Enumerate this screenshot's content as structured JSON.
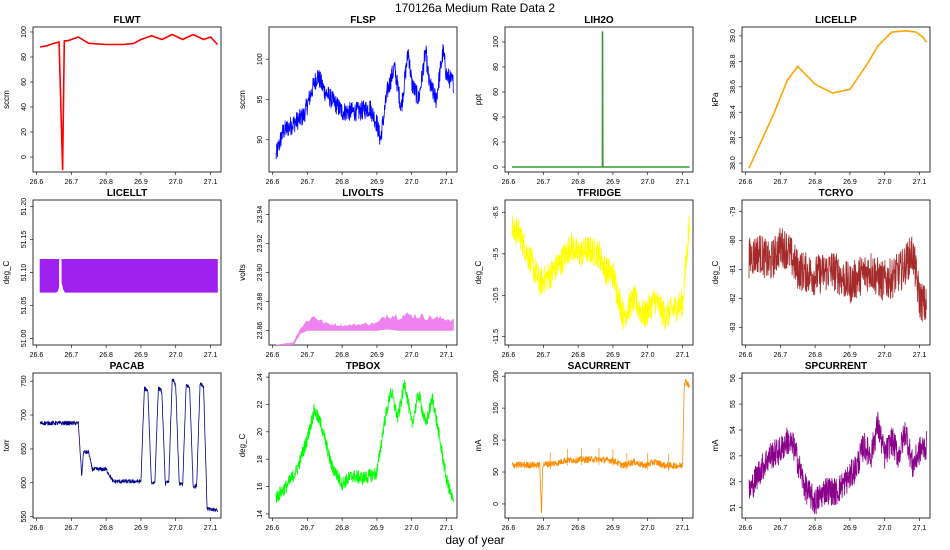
{
  "figure": {
    "title": "170126a   Medium Rate Data 2",
    "xlabel": "day of year",
    "xticks": [
      "26.6",
      "26.7",
      "26.8",
      "26.9",
      "27.0",
      "27.1"
    ]
  },
  "chart_data": [
    {
      "type": "line",
      "title": "FLWT",
      "ylabel": "sccm",
      "color": "#ff0000",
      "xlim": [
        26.59,
        27.13
      ],
      "ylim": [
        -12,
        104
      ],
      "yticks": [
        "0",
        "20",
        "40",
        "60",
        "80",
        "100"
      ],
      "yticks_v": [
        0,
        20,
        40,
        60,
        80,
        100
      ],
      "x": [
        26.61,
        26.63,
        26.65,
        26.665,
        26.675,
        26.68,
        26.69,
        26.72,
        26.75,
        26.8,
        26.85,
        26.88,
        26.9,
        26.93,
        26.96,
        26.99,
        27.02,
        27.05,
        27.08,
        27.1,
        27.12
      ],
      "y": [
        88,
        89,
        91,
        92,
        -10,
        93,
        93,
        96,
        91,
        90,
        90,
        91,
        94,
        97,
        94,
        98,
        94,
        98,
        94,
        96,
        90
      ]
    },
    {
      "type": "line",
      "title": "FLSP",
      "ylabel": "sccm",
      "color": "#0000ff",
      "xlim": [
        26.59,
        27.13
      ],
      "ylim": [
        86,
        104
      ],
      "yticks": [
        "90",
        "95",
        "100"
      ],
      "yticks_v": [
        90,
        95,
        100
      ],
      "x": [
        26.61,
        26.63,
        26.66,
        26.69,
        26.72,
        26.73,
        26.75,
        26.8,
        26.85,
        26.88,
        26.9,
        26.91,
        26.93,
        26.95,
        26.97,
        26.99,
        27.0,
        27.02,
        27.04,
        27.05,
        27.07,
        27.09,
        27.1,
        27.12
      ],
      "y": [
        88,
        91,
        92,
        93,
        97,
        98,
        96,
        93.5,
        93.5,
        94,
        92,
        90,
        96,
        99,
        94,
        101,
        97,
        95,
        101,
        97,
        95,
        101,
        98,
        97
      ],
      "noise": 1.2
    },
    {
      "type": "line",
      "title": "LIH2O",
      "ylabel": "ppt",
      "color": "#339933",
      "xlim": [
        26.59,
        27.13
      ],
      "ylim": [
        -4,
        112
      ],
      "yticks": [
        "0",
        "20",
        "40",
        "60",
        "80",
        "100"
      ],
      "yticks_v": [
        0,
        20,
        40,
        60,
        80,
        100
      ],
      "x": [
        26.61,
        26.87,
        26.87,
        26.871,
        26.872,
        27.12
      ],
      "y": [
        0,
        0,
        108,
        0,
        0,
        0
      ]
    },
    {
      "type": "line",
      "title": "LICELLP",
      "ylabel": "kPa",
      "color": "#ffa500",
      "xlim": [
        26.59,
        27.13
      ],
      "ylim": [
        37.93,
        39.07
      ],
      "yticks": [
        "38.0",
        "38.2",
        "38.4",
        "38.6",
        "38.8",
        "39.0"
      ],
      "yticks_v": [
        38.0,
        38.2,
        38.4,
        38.6,
        38.8,
        39.0
      ],
      "x": [
        26.61,
        26.65,
        26.68,
        26.72,
        26.75,
        26.8,
        26.85,
        26.9,
        26.95,
        26.98,
        27.02,
        27.06,
        27.09,
        27.11,
        27.12
      ],
      "y": [
        37.96,
        38.2,
        38.38,
        38.65,
        38.76,
        38.62,
        38.55,
        38.58,
        38.78,
        38.92,
        39.03,
        39.04,
        39.03,
        38.99,
        38.95
      ]
    },
    {
      "type": "band",
      "title": "LICELLT",
      "ylabel": "deg_C",
      "color": "#a020f0",
      "xlim": [
        26.59,
        27.13
      ],
      "ylim": [
        50.99,
        51.21
      ],
      "yticks": [
        "51.00",
        "51.05",
        "51.10",
        "51.15",
        "51.20"
      ],
      "yticks_v": [
        51.0,
        51.05,
        51.1,
        51.15,
        51.2
      ],
      "x": [
        26.61,
        26.66,
        26.67,
        26.68,
        27.12
      ],
      "low": [
        51.07,
        51.07,
        51.09,
        51.07,
        51.07
      ],
      "high": [
        51.12,
        51.12,
        51.12,
        51.12,
        51.12
      ]
    },
    {
      "type": "band",
      "title": "LIVOLTS",
      "ylabel": "volts",
      "color": "#ee82ee",
      "xlim": [
        26.59,
        27.13
      ],
      "ylim": [
        23.85,
        23.95
      ],
      "yticks": [
        "23.86",
        "23.88",
        "23.90",
        "23.92",
        "23.94"
      ],
      "yticks_v": [
        23.86,
        23.88,
        23.9,
        23.92,
        23.94
      ],
      "x": [
        26.61,
        26.66,
        26.68,
        26.7,
        26.72,
        26.75,
        26.8,
        26.85,
        26.9,
        26.93,
        26.96,
        26.99,
        27.02,
        27.05,
        27.08,
        27.1,
        27.12
      ],
      "low": [
        23.85,
        23.85,
        23.858,
        23.86,
        23.86,
        23.86,
        23.86,
        23.86,
        23.86,
        23.861,
        23.86,
        23.86,
        23.86,
        23.86,
        23.86,
        23.86,
        23.86
      ],
      "high": [
        23.85,
        23.852,
        23.862,
        23.868,
        23.872,
        23.866,
        23.864,
        23.865,
        23.866,
        23.873,
        23.872,
        23.873,
        23.872,
        23.871,
        23.87,
        23.87,
        23.868
      ]
    },
    {
      "type": "line",
      "title": "TFRIDGE",
      "ylabel": "deg_C",
      "color": "#ffff00",
      "xlim": [
        26.59,
        27.13
      ],
      "ylim": [
        -11.7,
        -8.2
      ],
      "yticks": [
        "-11.5",
        "-10.5",
        "-9.5",
        "-8.5"
      ],
      "yticks_v": [
        -11.5,
        -10.5,
        -9.5,
        -8.5
      ],
      "x": [
        26.61,
        26.63,
        26.66,
        26.69,
        26.72,
        26.75,
        26.78,
        26.8,
        26.83,
        26.86,
        26.88,
        26.9,
        26.93,
        26.96,
        26.99,
        27.02,
        27.05,
        27.08,
        27.1,
        27.12
      ],
      "y": [
        -8.9,
        -9.0,
        -9.6,
        -10.2,
        -10.0,
        -9.7,
        -9.3,
        -9.5,
        -9.4,
        -9.5,
        -9.9,
        -10.0,
        -11.0,
        -10.6,
        -11.0,
        -10.6,
        -11.0,
        -10.8,
        -10.7,
        -8.7
      ],
      "noise": 0.35
    },
    {
      "type": "line",
      "title": "TCRYO",
      "ylabel": "deg_C",
      "color": "#a52a2a",
      "xlim": [
        26.59,
        27.13
      ],
      "ylim": [
        -83.6,
        -78.6
      ],
      "yticks": [
        "-83",
        "-82",
        "-81",
        "-80",
        "-79"
      ],
      "yticks_v": [
        -83,
        -82,
        -81,
        -80,
        -79
      ],
      "x": [
        26.61,
        26.64,
        26.67,
        26.7,
        26.72,
        26.75,
        26.8,
        26.85,
        26.9,
        26.93,
        26.96,
        26.99,
        27.02,
        27.05,
        27.08,
        27.1,
        27.12
      ],
      "y": [
        -80.6,
        -80.4,
        -80.8,
        -80.2,
        -80.3,
        -81.0,
        -81.2,
        -81.0,
        -81.5,
        -81.2,
        -81.0,
        -81.4,
        -81.3,
        -81.0,
        -80.4,
        -82.0,
        -82.3
      ],
      "noise": 0.7
    },
    {
      "type": "line",
      "title": "PACAB",
      "ylabel": "torr",
      "color": "#00008b",
      "xlim": [
        26.59,
        27.13
      ],
      "ylim": [
        548,
        762
      ],
      "yticks": [
        "550",
        "600",
        "650",
        "700",
        "750"
      ],
      "yticks_v": [
        550,
        600,
        650,
        700,
        750
      ],
      "x": [
        26.61,
        26.7,
        26.72,
        26.73,
        26.735,
        26.75,
        26.76,
        26.8,
        26.82,
        26.83,
        26.9,
        26.91,
        26.92,
        26.93,
        26.94,
        26.95,
        26.96,
        26.97,
        26.98,
        26.99,
        27.0,
        27.01,
        27.02,
        27.03,
        27.04,
        27.05,
        27.06,
        27.07,
        27.08,
        27.09,
        27.1,
        27.12
      ],
      "y": [
        688,
        688,
        688,
        610,
        645,
        645,
        620,
        620,
        602,
        602,
        602,
        740,
        735,
        600,
        600,
        740,
        735,
        598,
        602,
        755,
        742,
        598,
        598,
        745,
        740,
        595,
        595,
        748,
        742,
        562,
        560,
        560
      ],
      "noise": 3
    },
    {
      "type": "line",
      "title": "TPBOX",
      "ylabel": "deg_C",
      "color": "#00ff00",
      "xlim": [
        26.59,
        27.13
      ],
      "ylim": [
        13.7,
        24.3
      ],
      "yticks": [
        "14",
        "16",
        "18",
        "20",
        "22",
        "24"
      ],
      "yticks_v": [
        14,
        16,
        18,
        20,
        22,
        24
      ],
      "x": [
        26.61,
        26.64,
        26.67,
        26.7,
        26.72,
        26.74,
        26.77,
        26.8,
        26.83,
        26.86,
        26.9,
        26.92,
        26.94,
        26.96,
        26.98,
        27.0,
        27.02,
        27.04,
        27.06,
        27.08,
        27.1,
        27.12
      ],
      "y": [
        15.2,
        16.0,
        17.2,
        19.5,
        21.6,
        20.5,
        17.5,
        16.2,
        16.8,
        16.6,
        17.0,
        20.5,
        23.0,
        21.0,
        23.6,
        20.5,
        22.8,
        20.5,
        22.5,
        19.5,
        16.5,
        14.8
      ],
      "noise": 0.5
    },
    {
      "type": "line",
      "title": "SACURRENT",
      "ylabel": "mA",
      "color": "#ff8c00",
      "xlim": [
        26.59,
        27.13
      ],
      "ylim": [
        -22,
        205
      ],
      "yticks": [
        "0",
        "50",
        "100",
        "150",
        "200"
      ],
      "yticks_v": [
        0,
        50,
        100,
        150,
        200
      ],
      "x": [
        26.61,
        26.69,
        26.695,
        26.698,
        26.7,
        26.72,
        26.74,
        26.76,
        26.8,
        26.85,
        26.9,
        26.93,
        26.96,
        26.99,
        27.02,
        27.05,
        27.08,
        27.1,
        27.105,
        27.11,
        27.12
      ],
      "y": [
        61,
        61,
        -20,
        61,
        62,
        63,
        64,
        68,
        69,
        70,
        68,
        60,
        66,
        60,
        66,
        60,
        60,
        60,
        190,
        192,
        185
      ],
      "noise": 5
    },
    {
      "type": "line",
      "title": "SPCURRENT",
      "ylabel": "mA",
      "color": "#8b008b",
      "xlim": [
        26.59,
        27.13
      ],
      "ylim": [
        50.6,
        56.2
      ],
      "yticks": [
        "51",
        "52",
        "53",
        "54",
        "55",
        "56"
      ],
      "yticks_v": [
        51,
        52,
        53,
        54,
        55,
        56
      ],
      "x": [
        26.61,
        26.64,
        26.67,
        26.7,
        26.72,
        26.74,
        26.77,
        26.8,
        26.83,
        26.86,
        26.9,
        26.92,
        26.94,
        26.96,
        26.98,
        27.0,
        27.02,
        27.04,
        27.06,
        27.08,
        27.1,
        27.12
      ],
      "y": [
        51.6,
        52.4,
        53.0,
        53.2,
        53.6,
        53.3,
        51.8,
        51.2,
        51.7,
        51.6,
        52.2,
        52.6,
        53.4,
        53.0,
        54.2,
        53.0,
        53.6,
        53.0,
        54.0,
        52.6,
        53.2,
        53.4
      ],
      "noise": 0.55
    }
  ]
}
